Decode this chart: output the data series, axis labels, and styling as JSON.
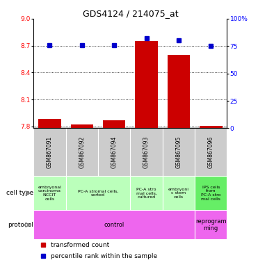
{
  "title": "GDS4124 / 214075_at",
  "samples": [
    "GSM867091",
    "GSM867092",
    "GSM867094",
    "GSM867093",
    "GSM867095",
    "GSM867096"
  ],
  "transformed_counts": [
    7.88,
    7.82,
    7.87,
    8.75,
    8.6,
    7.81
  ],
  "percentile_ranks": [
    76,
    76,
    76,
    82,
    80,
    75
  ],
  "ylim_left": [
    7.78,
    9.0
  ],
  "ylim_right": [
    0,
    100
  ],
  "yticks_left": [
    7.8,
    8.1,
    8.4,
    8.7,
    9.0
  ],
  "yticks_right": [
    0,
    25,
    50,
    75,
    100
  ],
  "cell_type_groups": [
    {
      "label": "embryonal\ncarcinoma\nNCCIT\ncells",
      "color": "#bbffbb",
      "start": 0,
      "end": 1
    },
    {
      "label": "PC-A stromal cells,\nsorted",
      "color": "#bbffbb",
      "start": 1,
      "end": 3
    },
    {
      "label": "PC-A stro\nmal cells,\ncultured",
      "color": "#bbffbb",
      "start": 3,
      "end": 4
    },
    {
      "label": "embryoni\nc stem\ncells",
      "color": "#bbffbb",
      "start": 4,
      "end": 5
    },
    {
      "label": "IPS cells\nfrom\nPC-A stro\nmal cells",
      "color": "#66ee66",
      "start": 5,
      "end": 6
    }
  ],
  "protocol_groups": [
    {
      "label": "control",
      "color": "#ee66ee",
      "start": 0,
      "end": 5
    },
    {
      "label": "reprogram\nming",
      "color": "#ee66ee",
      "start": 5,
      "end": 6
    }
  ],
  "bar_color": "#cc0000",
  "dot_color": "#0000cc",
  "bg_color": "#ffffff",
  "sample_bg_color": "#cccccc",
  "legend_red_label": "transformed count",
  "legend_blue_label": "percentile rank within the sample"
}
